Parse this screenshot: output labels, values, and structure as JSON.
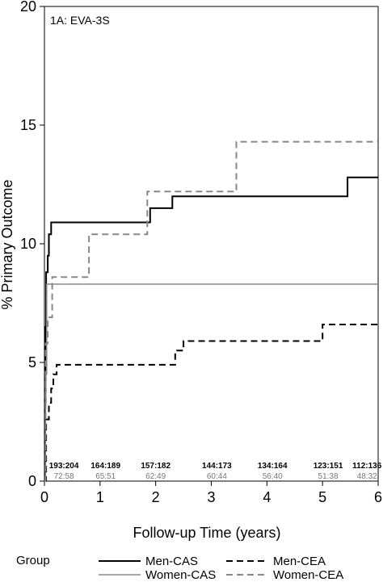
{
  "chart_data": {
    "type": "line",
    "panel_label": "1A: EVA-3S",
    "xlabel": "Follow-up Time (years)",
    "ylabel": "% Primary Outcome",
    "xlim": [
      0,
      6
    ],
    "ylim": [
      0,
      20
    ],
    "x_ticks": [
      "0",
      "1",
      "2",
      "3",
      "4",
      "5",
      "6"
    ],
    "y_ticks": [
      "0",
      "5",
      "10",
      "15",
      "20"
    ],
    "grid": false,
    "legend_title": "Group",
    "series": [
      {
        "name": "Men-CAS",
        "color": "#000000",
        "dash": "solid",
        "width": 2,
        "points": [
          [
            0,
            0
          ],
          [
            0.01,
            3.2
          ],
          [
            0.02,
            6.5
          ],
          [
            0.03,
            8.8
          ],
          [
            0.06,
            9.5
          ],
          [
            0.08,
            10.4
          ],
          [
            0.12,
            10.9
          ],
          [
            1.9,
            11.5
          ],
          [
            2.3,
            12.0
          ],
          [
            5.45,
            12.8
          ],
          [
            6.0,
            12.8
          ]
        ]
      },
      {
        "name": "Women-CAS",
        "color": "#888888",
        "dash": "solid",
        "width": 1.5,
        "points": [
          [
            0,
            0
          ],
          [
            0.02,
            4.5
          ],
          [
            0.04,
            8.3
          ],
          [
            6.0,
            8.3
          ]
        ]
      },
      {
        "name": "Men-CEA",
        "color": "#000000",
        "dash": "dash",
        "width": 2,
        "points": [
          [
            0,
            0
          ],
          [
            0.03,
            2.6
          ],
          [
            0.08,
            3.3
          ],
          [
            0.12,
            3.9
          ],
          [
            0.16,
            4.5
          ],
          [
            0.22,
            4.9
          ],
          [
            2.35,
            5.5
          ],
          [
            2.5,
            5.9
          ],
          [
            5.0,
            6.6
          ],
          [
            6.0,
            6.6
          ]
        ]
      },
      {
        "name": "Women-CEA",
        "color": "#888888",
        "dash": "dash",
        "width": 2,
        "points": [
          [
            0,
            0
          ],
          [
            0.02,
            5.8
          ],
          [
            0.06,
            6.9
          ],
          [
            0.14,
            8.6
          ],
          [
            0.8,
            10.4
          ],
          [
            1.85,
            12.2
          ],
          [
            3.45,
            14.3
          ],
          [
            6.0,
            14.3
          ]
        ]
      }
    ],
    "at_risk": [
      {
        "x": 0.35,
        "top": "193:204",
        "bottom": "72:58"
      },
      {
        "x": 1.1,
        "top": "164:189",
        "bottom": "65:51"
      },
      {
        "x": 2.0,
        "top": "157:182",
        "bottom": "62:49"
      },
      {
        "x": 3.1,
        "top": "144:173",
        "bottom": "60:44"
      },
      {
        "x": 4.1,
        "top": "134:164",
        "bottom": "56:40"
      },
      {
        "x": 5.1,
        "top": "123:151",
        "bottom": "51:38"
      },
      {
        "x": 5.8,
        "top": "112:136",
        "bottom": "48:32"
      }
    ]
  }
}
